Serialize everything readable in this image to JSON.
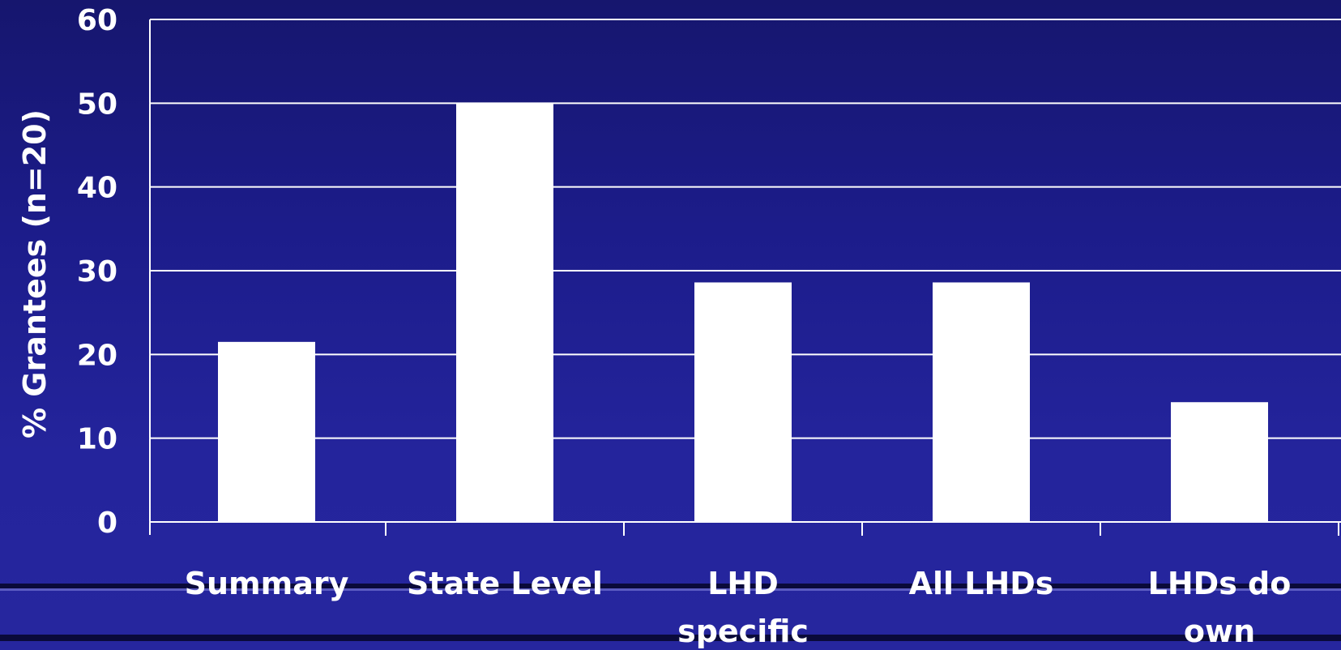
{
  "chart_data": {
    "type": "bar",
    "categories": [
      [
        "Summary"
      ],
      [
        "State Level"
      ],
      [
        "LHD",
        "specific"
      ],
      [
        "All LHDs"
      ],
      [
        "LHDs do",
        "own"
      ]
    ],
    "values": [
      21.5,
      50,
      28.6,
      28.6,
      14.3
    ],
    "title": "",
    "xlabel": "",
    "ylabel": "% Grantees (n=20)",
    "ylim": [
      0,
      60
    ],
    "yticks": [
      0,
      10,
      20,
      30,
      40,
      50,
      60
    ],
    "grid": true,
    "colors": {
      "bar": "#ffffff",
      "grid": "#ffffff",
      "text": "#ffffff",
      "background": "#1c1c8a"
    }
  }
}
